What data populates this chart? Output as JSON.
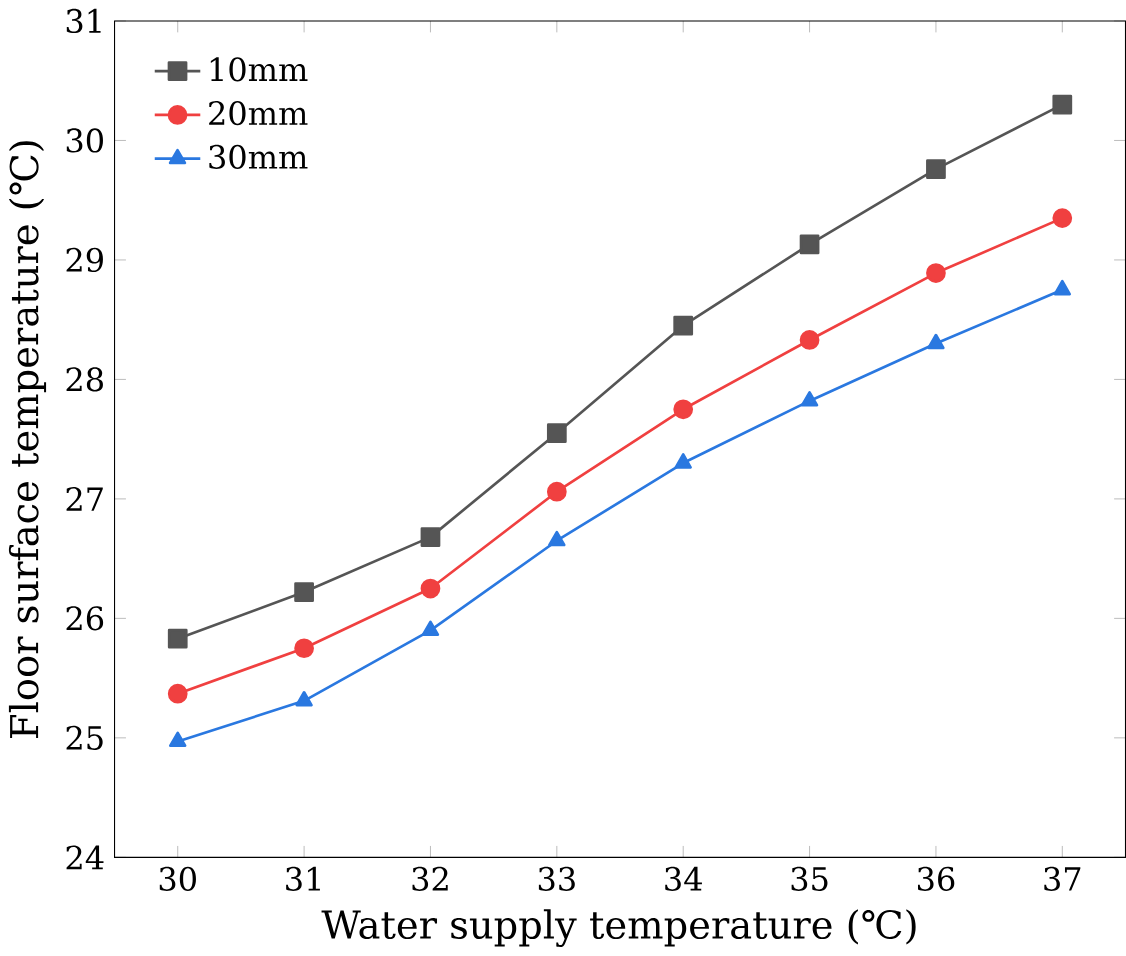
{
  "chart_data": {
    "type": "line",
    "xlabel": "Water supply temperature (℃)",
    "ylabel": "Floor surface temperature (℃)",
    "categories": [
      "30",
      "31",
      "32",
      "33",
      "34",
      "35",
      "36",
      "37"
    ],
    "ylim": [
      24,
      31
    ],
    "yticks": [
      24,
      25,
      26,
      27,
      28,
      29,
      30,
      31
    ],
    "legend": "top left",
    "line_style": "solid",
    "series": [
      {
        "name": "10mm",
        "color": "#555555",
        "marker": "square",
        "values": [
          25.83,
          26.22,
          26.68,
          27.55,
          28.45,
          29.13,
          29.76,
          30.3
        ]
      },
      {
        "name": "20mm",
        "color": "#f04040",
        "marker": "circle",
        "values": [
          25.37,
          25.75,
          26.25,
          27.06,
          27.75,
          28.33,
          28.89,
          29.35
        ]
      },
      {
        "name": "30mm",
        "color": "#2a78e0",
        "marker": "triangle",
        "values": [
          24.97,
          25.31,
          25.9,
          26.65,
          27.3,
          27.82,
          28.3,
          28.75
        ]
      }
    ]
  }
}
